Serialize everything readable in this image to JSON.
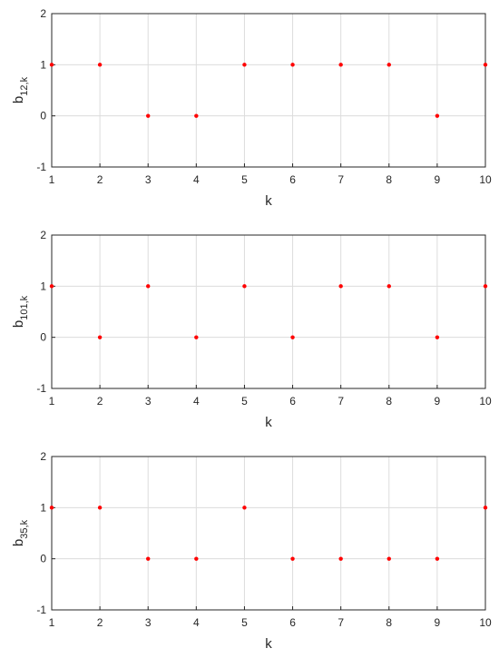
{
  "chart_data": [
    {
      "type": "scatter",
      "ylabel": {
        "base": "b",
        "sub": "12,k"
      },
      "xlabel": "k",
      "x": [
        1,
        2,
        3,
        4,
        5,
        6,
        7,
        8,
        9,
        10
      ],
      "series": [
        {
          "color": "#ff0000",
          "values": [
            1,
            1,
            0,
            0,
            1,
            1,
            1,
            1,
            0,
            1
          ]
        }
      ],
      "xlim": [
        1,
        10
      ],
      "xticks": [
        1,
        2,
        3,
        4,
        5,
        6,
        7,
        8,
        9,
        10
      ],
      "ylim": [
        -1,
        2
      ],
      "yticks": [
        -1,
        0,
        1,
        2
      ],
      "grid": true
    },
    {
      "type": "scatter",
      "ylabel": {
        "base": "b",
        "sub": "101,k"
      },
      "xlabel": "k",
      "x": [
        1,
        2,
        3,
        4,
        5,
        6,
        7,
        8,
        9,
        10
      ],
      "series": [
        {
          "color": "#ff0000",
          "values": [
            1,
            0,
            1,
            0,
            1,
            0,
            1,
            1,
            0,
            1
          ]
        }
      ],
      "xlim": [
        1,
        10
      ],
      "xticks": [
        1,
        2,
        3,
        4,
        5,
        6,
        7,
        8,
        9,
        10
      ],
      "ylim": [
        -1,
        2
      ],
      "yticks": [
        -1,
        0,
        1,
        2
      ],
      "grid": true
    },
    {
      "type": "scatter",
      "ylabel": {
        "base": "b",
        "sub": "35,k"
      },
      "xlabel": "k",
      "x": [
        1,
        2,
        3,
        4,
        5,
        6,
        7,
        8,
        9,
        10
      ],
      "series": [
        {
          "color": "#ff0000",
          "values": [
            1,
            1,
            0,
            0,
            1,
            0,
            0,
            0,
            0,
            1
          ]
        }
      ],
      "xlim": [
        1,
        10
      ],
      "xticks": [
        1,
        2,
        3,
        4,
        5,
        6,
        7,
        8,
        9,
        10
      ],
      "ylim": [
        -1,
        2
      ],
      "yticks": [
        -1,
        0,
        1,
        2
      ],
      "grid": true
    }
  ]
}
